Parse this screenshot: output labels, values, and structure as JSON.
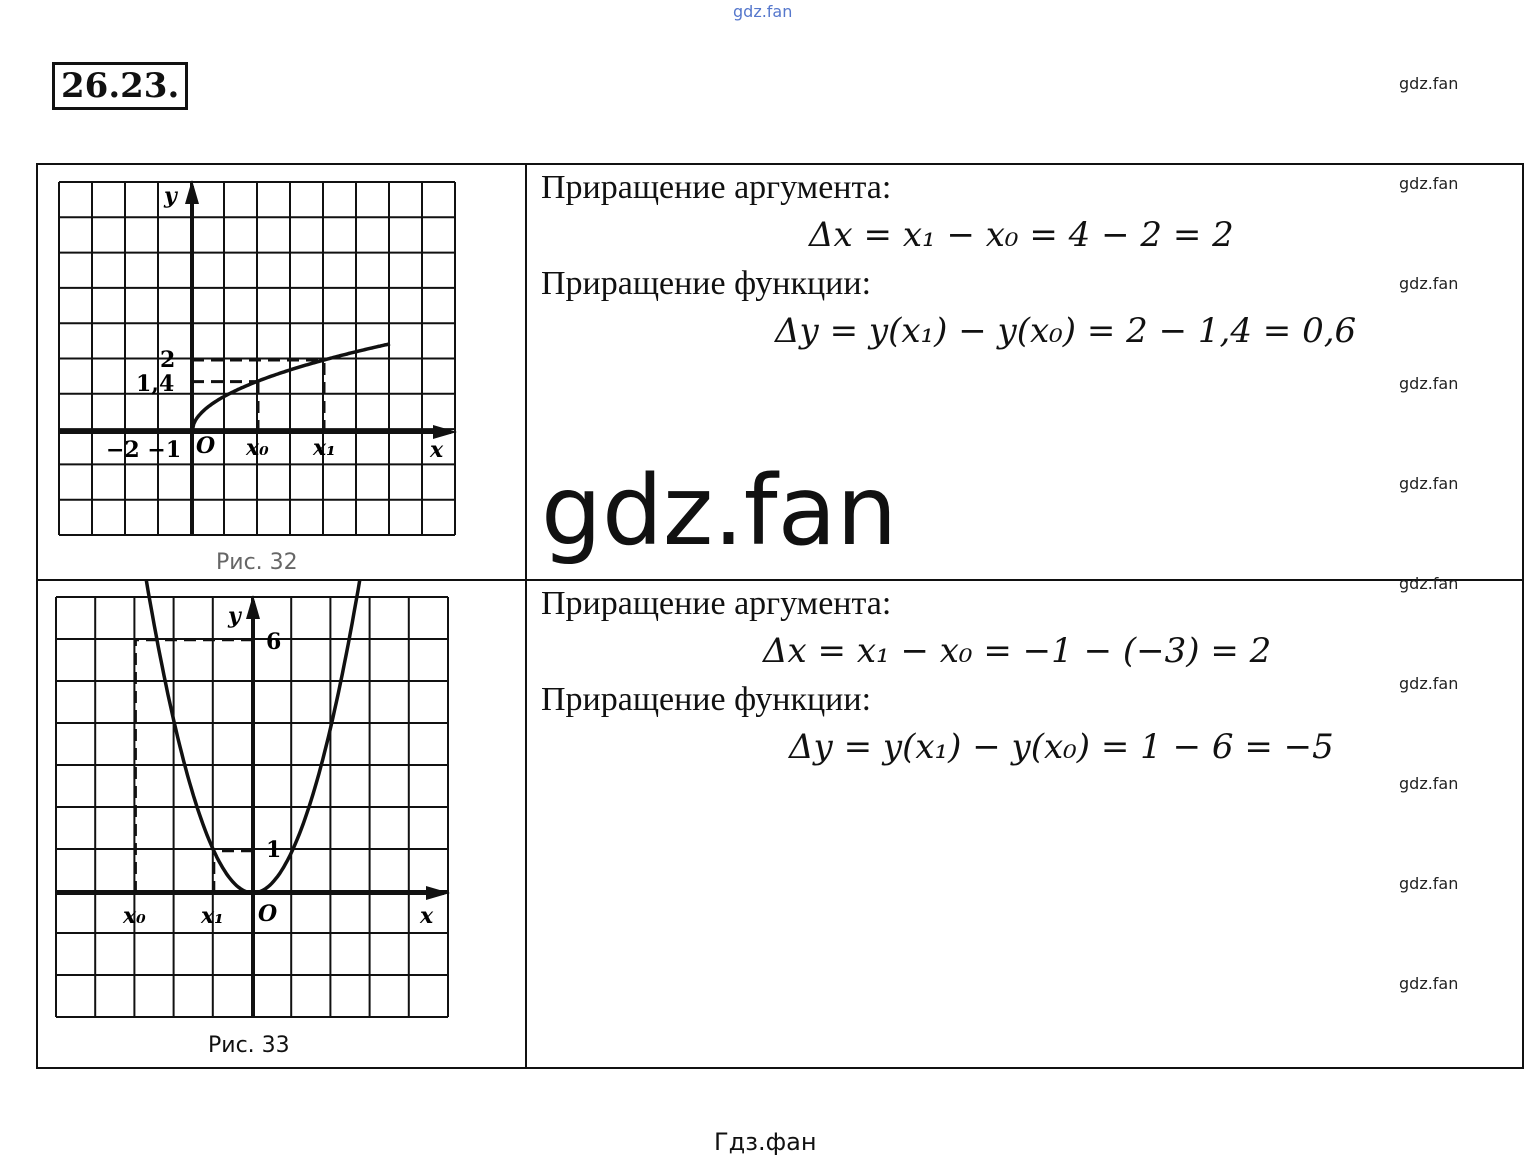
{
  "watermark_top": "gdz.fan",
  "problem_number": "26.23.",
  "side_watermarks": [
    "gdz.fan",
    "gdz.fan",
    "gdz.fan",
    "gdz.fan",
    "gdz.fan",
    "gdz.fan",
    "gdz.fan",
    "gdz.fan",
    "gdz.fan",
    "gdz.fan"
  ],
  "big_watermark": "gdz.fan",
  "footer": "Гдз.фан",
  "part1": {
    "caption": "Рис. 32",
    "graph": {
      "function": "sqrt",
      "labels": {
        "y": "y",
        "x": "x",
        "o": "O",
        "x0": "x₀",
        "x1": "x₁",
        "ticks_x": "−2 −1",
        "y1": "1,4",
        "y2": "2"
      },
      "x0": 2,
      "x1": 4,
      "y0": 1.4,
      "y1": 2
    },
    "heading_arg": "Приращение аргумента:",
    "formula_arg": "Δx = x₁ − x₀ = 4 − 2 = 2",
    "heading_fun": "Приращение функции:",
    "formula_fun": "Δy = y(x₁) − y(x₀) = 2 − 1,4 = 0,6"
  },
  "part2": {
    "caption": "Рис. 33",
    "graph": {
      "function": "square",
      "labels": {
        "y": "y",
        "x": "x",
        "o": "O",
        "x0": "x₀",
        "x1": "x₁",
        "y6": "6",
        "y1": "1"
      },
      "x0": -3,
      "x1": -1,
      "y0": 6,
      "y1": 1
    },
    "heading_arg": "Приращение аргумента:",
    "formula_arg": "Δx = x₁ − x₀ = −1 − (−3) = 2",
    "heading_fun": "Приращение функции:",
    "formula_fun": "Δy = y(x₁) − y(x₀) = 1 − 6 = −5"
  }
}
